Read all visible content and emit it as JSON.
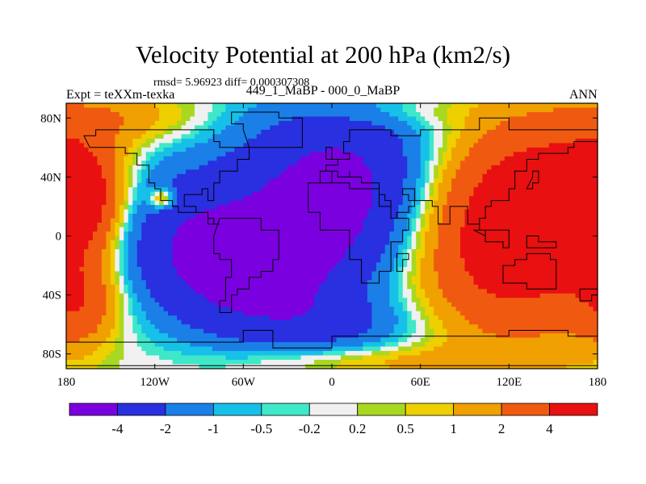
{
  "chart_data": {
    "type": "heatmap",
    "title": "Velocity Potential at 200 hPa (km2/s)",
    "subtitle": "rmsd= 5.96923 diff= 0.000307308",
    "left_string": "Expt = teXXm-texka",
    "center_string": "449_1_MaBP - 000_0_MaBP",
    "right_string": "ANN",
    "x_axis": {
      "range": [
        -180,
        180
      ],
      "ticks": [
        -180,
        -120,
        -60,
        0,
        60,
        120,
        180
      ],
      "tick_labels": [
        "180",
        "120W",
        "60W",
        "0",
        "60E",
        "120E",
        "180"
      ]
    },
    "y_axis": {
      "range": [
        -90,
        90
      ],
      "ticks": [
        80,
        40,
        0,
        -40,
        -80
      ],
      "tick_labels": [
        "80N",
        "40N",
        "0",
        "40S",
        "80S"
      ]
    },
    "colorbar": {
      "levels": [
        "-4",
        "-2",
        "-1",
        "-0.5",
        "-0.2",
        "0.2",
        "0.5",
        "1",
        "2",
        "4"
      ],
      "colors": [
        "#7b00e0",
        "#2830e0",
        "#1a7fe6",
        "#17c0e8",
        "#3ee8c8",
        "#f0f0f0",
        "#a8d820",
        "#eed000",
        "#f0a000",
        "#f05a10",
        "#e81010"
      ]
    },
    "field_centers": [
      {
        "lon": 10,
        "lat": 30,
        "amp": -5.2,
        "slon": 55,
        "slat": 45
      },
      {
        "lon": -60,
        "lat": -25,
        "amp": -4.2,
        "slon": 45,
        "slat": 30
      },
      {
        "lon": -120,
        "lat": 10,
        "amp": -2.4,
        "slon": 40,
        "slat": 35
      },
      {
        "lon": -115,
        "lat": 25,
        "amp": 3.2,
        "slon": 6,
        "slat": 5
      },
      {
        "lon": 120,
        "lat": 5,
        "amp": 6.8,
        "slon": 50,
        "slat": 48
      },
      {
        "lon": 175,
        "lat": 30,
        "amp": 2.6,
        "slon": 35,
        "slat": 30
      },
      {
        "lon": -170,
        "lat": 25,
        "amp": 3.8,
        "slon": 18,
        "slat": 26
      },
      {
        "lon": -170,
        "lat": -45,
        "amp": 3.0,
        "slon": 18,
        "slat": 20
      },
      {
        "lon": -140,
        "lat": 80,
        "amp": 1.6,
        "slon": 40,
        "slat": 14
      },
      {
        "lon": 30,
        "lat": 85,
        "amp": 0.9,
        "slon": 40,
        "slat": 8
      },
      {
        "lon": 30,
        "lat": -85,
        "amp": 1.2,
        "slon": 70,
        "slat": 7
      },
      {
        "lon": 0,
        "lat": -60,
        "amp": -1.8,
        "slon": 45,
        "slat": 14
      }
    ]
  }
}
